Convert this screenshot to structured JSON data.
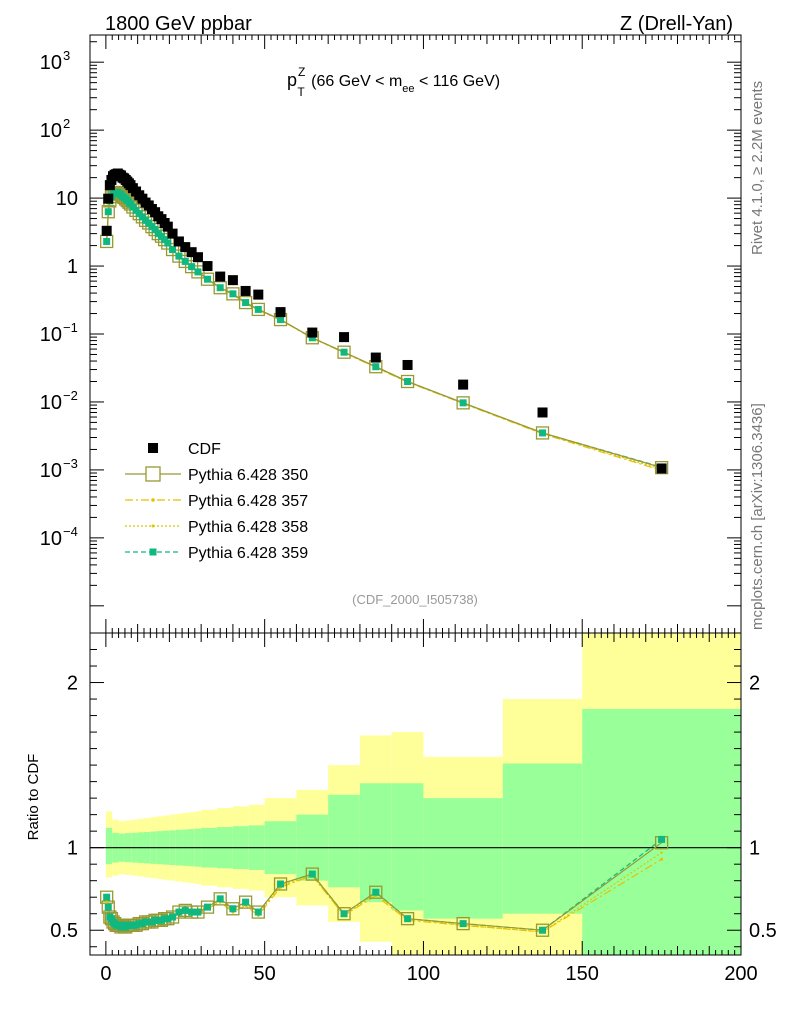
{
  "header": {
    "left_title": "1800 GeV ppbar",
    "right_title": "Z (Drell-Yan)",
    "side_right_top": "Rivet 4.1.0, ≥ 2.2M events",
    "side_right_bottom": "mcplots.cern.ch [arXiv:1306.3436]",
    "analysis_id": "(CDF_2000_I505738)"
  },
  "chart_data": [
    {
      "type": "scatter",
      "scale": "log",
      "title_main": "p",
      "title_sup": "Z",
      "title_sub": "T",
      "title_rest1": " (66 GeV < m",
      "title_sub2": "ee",
      "title_rest2": " < 116 GeV)",
      "xlim": [
        -5,
        200
      ],
      "ylim_log": [
        -5.4,
        3.4
      ],
      "ytick_labels": [
        {
          "base": "10",
          "exp": "3",
          "value": 1000
        },
        {
          "base": "10",
          "exp": "2",
          "value": 100
        },
        {
          "base": "10",
          "exp": "",
          "value": 10
        },
        {
          "base": "1",
          "exp": "",
          "value": 1
        },
        {
          "base": "10",
          "exp": "−1",
          "value": 0.1
        },
        {
          "base": "10",
          "exp": "−2",
          "value": 0.01
        },
        {
          "base": "10",
          "exp": "−3",
          "value": 0.001
        },
        {
          "base": "10",
          "exp": "−4",
          "value": 0.0001
        }
      ],
      "x": [
        0.25,
        0.75,
        1.25,
        1.75,
        2.25,
        2.75,
        3.25,
        3.75,
        4.25,
        4.75,
        5.25,
        5.75,
        6.25,
        6.75,
        7.25,
        7.75,
        8.5,
        9.5,
        10.5,
        11.5,
        12.5,
        13.5,
        14.5,
        15.5,
        16.5,
        17.5,
        18.5,
        19.5,
        21,
        23,
        25,
        27,
        29,
        32,
        36,
        40,
        44,
        48,
        55,
        65,
        75,
        85,
        95,
        112.5,
        137.5,
        175
      ],
      "series": [
        {
          "name": "CDF",
          "color": "#000000",
          "values": [
            3.3,
            9.8,
            15.5,
            18.5,
            21,
            22,
            22.5,
            23,
            22,
            21.5,
            20,
            19.5,
            18.5,
            17.5,
            16.5,
            15.5,
            14,
            12.5,
            11,
            9.8,
            8.6,
            7.8,
            6.9,
            6.2,
            5.4,
            4.9,
            4.3,
            3.8,
            3.0,
            2.3,
            1.9,
            1.6,
            1.35,
            1.0,
            0.7,
            0.62,
            0.43,
            0.38,
            0.21,
            0.105,
            0.09,
            0.045,
            0.035,
            0.018,
            0.007,
            0.00105
          ]
        },
        {
          "name": "Pythia 6.428 350",
          "color": "#999933",
          "values": [
            2.3,
            6.3,
            9.1,
            10.5,
            11.6,
            11.9,
            12,
            12.1,
            11.6,
            11.2,
            10.6,
            10.2,
            9.7,
            9.2,
            8.7,
            8.2,
            7.4,
            6.6,
            5.9,
            5.3,
            4.7,
            4.3,
            3.8,
            3.45,
            3.0,
            2.75,
            2.45,
            2.18,
            1.75,
            1.4,
            1.17,
            0.98,
            0.82,
            0.64,
            0.48,
            0.39,
            0.29,
            0.23,
            0.163,
            0.088,
            0.054,
            0.033,
            0.02,
            0.0097,
            0.0035,
            0.00108
          ]
        },
        {
          "name": "Pythia 6.428 357",
          "color": "#e8c000",
          "values": [
            2.2,
            6.2,
            9.0,
            10.4,
            11.5,
            11.8,
            11.9,
            12.0,
            11.5,
            11.1,
            10.5,
            10.1,
            9.6,
            9.1,
            8.6,
            8.1,
            7.3,
            6.5,
            5.8,
            5.2,
            4.6,
            4.2,
            3.7,
            3.4,
            3.0,
            2.7,
            2.4,
            2.15,
            1.72,
            1.38,
            1.15,
            0.97,
            0.81,
            0.63,
            0.47,
            0.38,
            0.28,
            0.225,
            0.16,
            0.087,
            0.053,
            0.032,
            0.0195,
            0.0095,
            0.0034,
            0.00098
          ]
        },
        {
          "name": "Pythia 6.428 358",
          "color": "#d8c800",
          "values": [
            2.25,
            6.25,
            9.05,
            10.45,
            11.55,
            11.85,
            11.95,
            12.05,
            11.55,
            11.15,
            10.55,
            10.15,
            9.65,
            9.15,
            8.65,
            8.15,
            7.35,
            6.55,
            5.85,
            5.25,
            4.65,
            4.25,
            3.75,
            3.42,
            3.0,
            2.72,
            2.42,
            2.16,
            1.73,
            1.39,
            1.16,
            0.975,
            0.815,
            0.635,
            0.475,
            0.385,
            0.285,
            0.228,
            0.161,
            0.0875,
            0.0535,
            0.0325,
            0.0198,
            0.0096,
            0.00345,
            0.00102
          ]
        },
        {
          "name": "Pythia 6.428 359",
          "color": "#10b880",
          "values": [
            2.3,
            6.3,
            9.1,
            10.5,
            11.6,
            11.9,
            12,
            12.1,
            11.6,
            11.2,
            10.6,
            10.2,
            9.7,
            9.2,
            8.7,
            8.2,
            7.4,
            6.6,
            5.9,
            5.3,
            4.7,
            4.3,
            3.8,
            3.45,
            3.0,
            2.75,
            2.45,
            2.18,
            1.75,
            1.4,
            1.17,
            0.98,
            0.82,
            0.64,
            0.48,
            0.39,
            0.29,
            0.23,
            0.163,
            0.088,
            0.054,
            0.033,
            0.02,
            0.0097,
            0.0035,
            0.0011
          ]
        }
      ],
      "legend": [
        {
          "label": "CDF",
          "style": "square-filled"
        },
        {
          "label": "Pythia 6.428 350",
          "style": "open-square-solid"
        },
        {
          "label": "Pythia 6.428 357",
          "style": "dashdot"
        },
        {
          "label": "Pythia 6.428 358",
          "style": "dotted"
        },
        {
          "label": "Pythia 6.428 359",
          "style": "dashed-square"
        }
      ]
    },
    {
      "type": "scatter",
      "ylabel": "Ratio to CDF",
      "xlim": [
        -5,
        200
      ],
      "ylim": [
        0.35,
        2.3
      ],
      "xtick_labels": [
        "0",
        "50",
        "100",
        "150",
        "200"
      ],
      "ytick_labels": [
        "0.5",
        "1",
        "2"
      ],
      "band_edges": [
        0,
        2,
        4,
        6,
        8,
        10,
        12,
        14,
        16,
        18,
        20,
        22,
        24,
        26,
        28,
        30,
        35,
        40,
        45,
        50,
        60,
        70,
        80,
        90,
        100,
        125,
        150,
        200
      ],
      "band_yellow_low": [
        0.82,
        0.83,
        0.84,
        0.835,
        0.83,
        0.825,
        0.82,
        0.815,
        0.81,
        0.805,
        0.8,
        0.795,
        0.79,
        0.785,
        0.78,
        0.77,
        0.76,
        0.75,
        0.74,
        0.7,
        0.65,
        0.55,
        0.43,
        0.35,
        0.35,
        0.35,
        0.35
      ],
      "band_yellow_high": [
        1.22,
        1.17,
        1.16,
        1.165,
        1.17,
        1.175,
        1.18,
        1.185,
        1.19,
        1.195,
        1.2,
        1.205,
        1.21,
        1.215,
        1.22,
        1.23,
        1.24,
        1.25,
        1.26,
        1.3,
        1.35,
        1.5,
        1.68,
        1.7,
        1.55,
        1.9,
        2.3
      ],
      "band_green_low": [
        0.9,
        0.91,
        0.915,
        0.912,
        0.91,
        0.907,
        0.905,
        0.902,
        0.9,
        0.897,
        0.895,
        0.892,
        0.89,
        0.887,
        0.885,
        0.88,
        0.875,
        0.87,
        0.865,
        0.84,
        0.8,
        0.76,
        0.67,
        0.62,
        0.57,
        0.6,
        0.35
      ],
      "band_green_high": [
        1.12,
        1.09,
        1.085,
        1.088,
        1.09,
        1.093,
        1.095,
        1.098,
        1.1,
        1.103,
        1.105,
        1.108,
        1.11,
        1.113,
        1.115,
        1.12,
        1.125,
        1.13,
        1.135,
        1.16,
        1.2,
        1.32,
        1.39,
        1.39,
        1.3,
        1.51,
        1.84
      ],
      "series": [
        {
          "name": "Pythia 6.428 350",
          "color": "#999933",
          "values": [
            0.7,
            0.64,
            0.58,
            0.57,
            0.55,
            0.54,
            0.53,
            0.53,
            0.53,
            0.52,
            0.53,
            0.52,
            0.52,
            0.53,
            0.53,
            0.53,
            0.53,
            0.53,
            0.54,
            0.54,
            0.55,
            0.55,
            0.55,
            0.56,
            0.56,
            0.56,
            0.57,
            0.57,
            0.58,
            0.61,
            0.62,
            0.61,
            0.61,
            0.64,
            0.69,
            0.63,
            0.67,
            0.61,
            0.78,
            0.84,
            0.6,
            0.73,
            0.57,
            0.54,
            0.5,
            1.03
          ]
        },
        {
          "name": "Pythia 6.428 357",
          "color": "#e8c000",
          "values": [
            0.67,
            0.63,
            0.58,
            0.56,
            0.55,
            0.54,
            0.53,
            0.52,
            0.52,
            0.52,
            0.53,
            0.52,
            0.52,
            0.52,
            0.52,
            0.52,
            0.52,
            0.52,
            0.53,
            0.53,
            0.53,
            0.54,
            0.54,
            0.55,
            0.56,
            0.55,
            0.56,
            0.57,
            0.57,
            0.6,
            0.61,
            0.61,
            0.6,
            0.63,
            0.67,
            0.61,
            0.65,
            0.59,
            0.76,
            0.83,
            0.59,
            0.71,
            0.56,
            0.53,
            0.49,
            0.93
          ]
        },
        {
          "name": "Pythia 6.428 358",
          "color": "#d8c800",
          "values": [
            0.68,
            0.64,
            0.58,
            0.57,
            0.55,
            0.54,
            0.53,
            0.52,
            0.52,
            0.52,
            0.53,
            0.52,
            0.52,
            0.52,
            0.52,
            0.53,
            0.52,
            0.52,
            0.53,
            0.54,
            0.54,
            0.54,
            0.54,
            0.55,
            0.56,
            0.56,
            0.56,
            0.57,
            0.58,
            0.6,
            0.61,
            0.61,
            0.6,
            0.63,
            0.68,
            0.62,
            0.66,
            0.6,
            0.77,
            0.83,
            0.59,
            0.72,
            0.57,
            0.53,
            0.49,
            0.97
          ]
        },
        {
          "name": "Pythia 6.428 359",
          "color": "#10b880",
          "values": [
            0.7,
            0.64,
            0.58,
            0.57,
            0.55,
            0.54,
            0.53,
            0.53,
            0.53,
            0.52,
            0.53,
            0.52,
            0.52,
            0.53,
            0.53,
            0.53,
            0.53,
            0.53,
            0.54,
            0.54,
            0.55,
            0.55,
            0.55,
            0.56,
            0.56,
            0.56,
            0.57,
            0.57,
            0.58,
            0.61,
            0.62,
            0.61,
            0.61,
            0.64,
            0.69,
            0.63,
            0.67,
            0.61,
            0.78,
            0.84,
            0.6,
            0.73,
            0.57,
            0.54,
            0.5,
            1.05
          ]
        }
      ]
    }
  ]
}
